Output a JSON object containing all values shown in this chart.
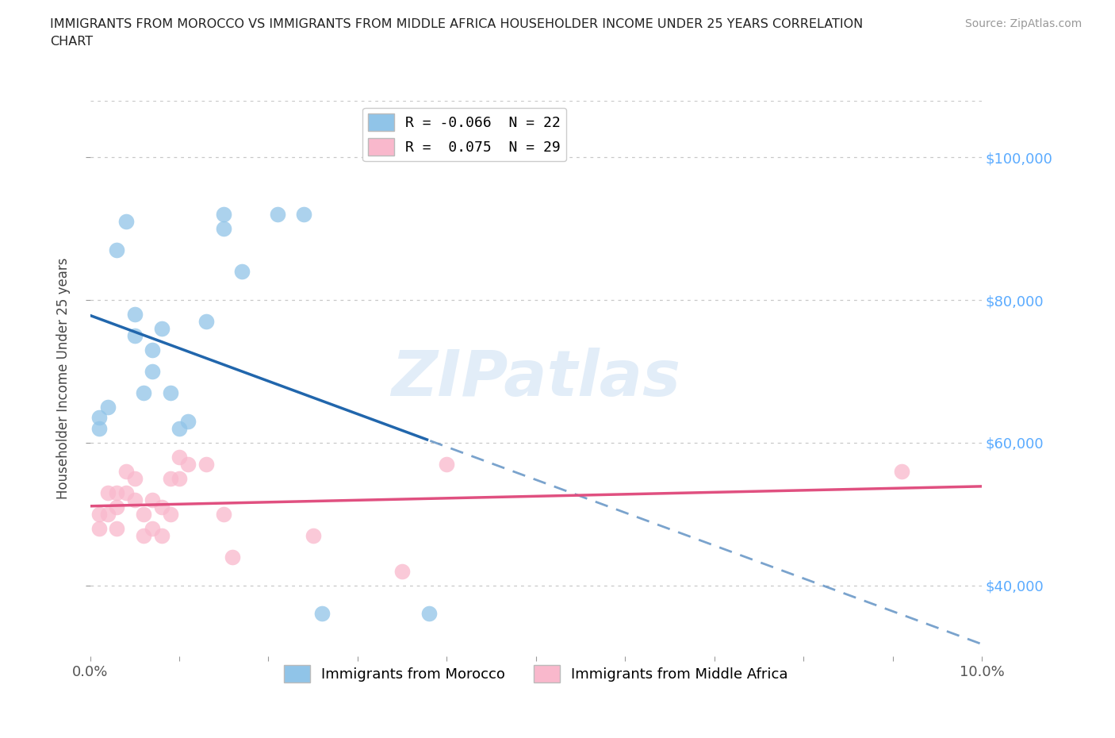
{
  "title": "IMMIGRANTS FROM MOROCCO VS IMMIGRANTS FROM MIDDLE AFRICA HOUSEHOLDER INCOME UNDER 25 YEARS CORRELATION\nCHART",
  "source": "Source: ZipAtlas.com",
  "ylabel": "Householder Income Under 25 years",
  "legend_labels": [
    "Immigrants from Morocco",
    "Immigrants from Middle Africa"
  ],
  "legend_r_n": [
    [
      "R = -0.066",
      "N = 22"
    ],
    [
      "R =  0.075",
      "N = 29"
    ]
  ],
  "color_morocco": "#90c4e8",
  "color_midafrica": "#f9b8cc",
  "color_morocco_line": "#2166ac",
  "color_midafrica_line": "#e05080",
  "color_yaxis_labels": "#5aabff",
  "xlim": [
    0.0,
    0.1
  ],
  "ylim": [
    30000,
    108000
  ],
  "yticks": [
    40000,
    60000,
    80000,
    100000
  ],
  "ytick_labels": [
    "$40,000",
    "$60,000",
    "$80,000",
    "$100,000"
  ],
  "morocco_x": [
    0.001,
    0.001,
    0.002,
    0.003,
    0.004,
    0.005,
    0.005,
    0.006,
    0.007,
    0.007,
    0.008,
    0.009,
    0.01,
    0.011,
    0.013,
    0.015,
    0.015,
    0.017,
    0.021,
    0.024,
    0.026,
    0.038
  ],
  "morocco_y": [
    63500,
    62000,
    65000,
    87000,
    91000,
    78000,
    75000,
    67000,
    73000,
    70000,
    76000,
    67000,
    62000,
    63000,
    77000,
    90000,
    92000,
    84000,
    92000,
    92000,
    36000,
    36000
  ],
  "midafrica_x": [
    0.001,
    0.001,
    0.002,
    0.002,
    0.003,
    0.003,
    0.003,
    0.004,
    0.004,
    0.005,
    0.005,
    0.006,
    0.006,
    0.007,
    0.007,
    0.008,
    0.008,
    0.009,
    0.009,
    0.01,
    0.01,
    0.011,
    0.013,
    0.015,
    0.016,
    0.025,
    0.035,
    0.04,
    0.091
  ],
  "midafrica_y": [
    50000,
    48000,
    53000,
    50000,
    53000,
    51000,
    48000,
    56000,
    53000,
    55000,
    52000,
    50000,
    47000,
    52000,
    48000,
    51000,
    47000,
    55000,
    50000,
    58000,
    55000,
    57000,
    57000,
    50000,
    44000,
    47000,
    42000,
    57000,
    56000
  ],
  "watermark": "ZIPatlas",
  "background_color": "#ffffff",
  "grid_color": "#c8c8c8"
}
